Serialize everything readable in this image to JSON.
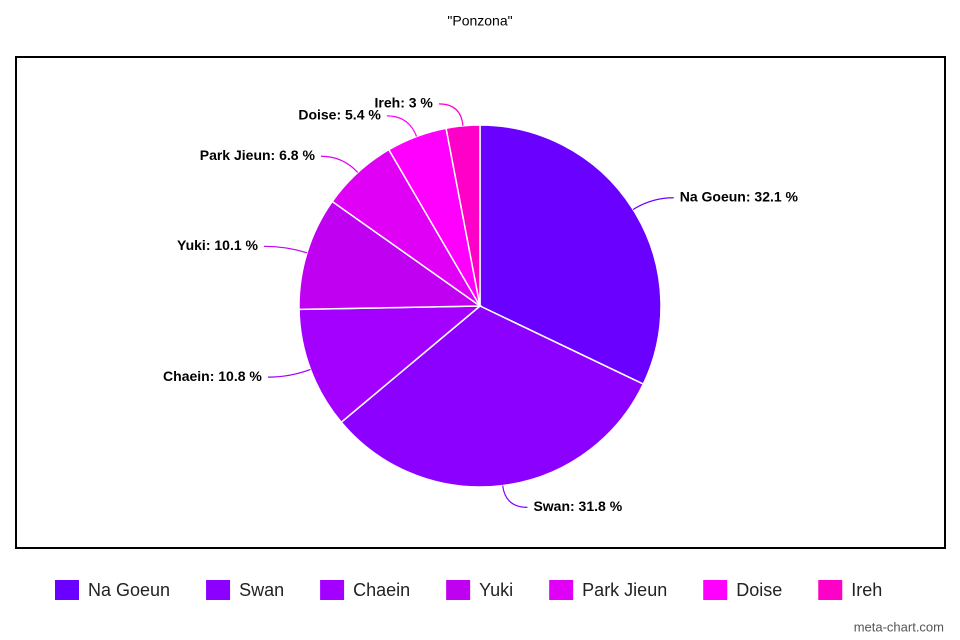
{
  "chart_data": {
    "type": "pie",
    "title": "\"Ponzona\"",
    "categories": [
      "Na Goeun",
      "Swan",
      "Chaein",
      "Yuki",
      "Park Jieun",
      "Doise",
      "Ireh"
    ],
    "values": [
      32.1,
      31.8,
      10.8,
      10.1,
      6.8,
      5.4,
      3
    ],
    "value_labels": [
      "Na Goeun: 32.1 %",
      "Swan: 31.8 %",
      "Chaein: 10.8 %",
      "Yuki: 10.1 %",
      "Park Jieun: 6.8 %",
      "Doise: 5.4 %",
      "Ireh: 3 %"
    ],
    "colors": [
      "#6a00ff",
      "#8c00ff",
      "#a300ff",
      "#c000f0",
      "#e000f5",
      "#ff00ff",
      "#ff00c8"
    ],
    "legend": "bottom",
    "watermark": "meta-chart.com"
  }
}
